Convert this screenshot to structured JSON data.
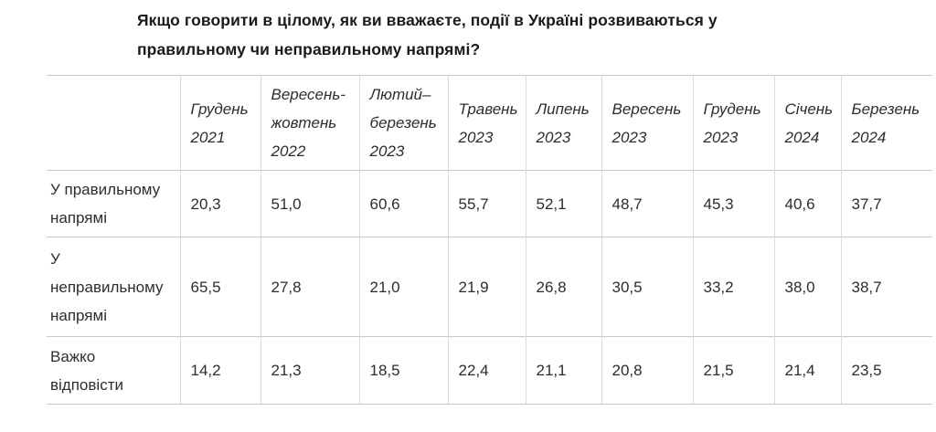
{
  "title": "Якщо говорити в цілому, як ви вважаєте, події в Україні розвиваються у правильному чи неправильному напрямі?",
  "colors": {
    "background": "#ffffff",
    "title_text": "#1b1b1b",
    "body_text": "#2d2d2d",
    "border_horizontal": "#c8c8c8",
    "border_vertical": "#dadada"
  },
  "table": {
    "corner_label": "",
    "columns": [
      "Грудень 2021",
      "Вересень-жовтень 2022",
      "Лютий–березень 2023",
      "Травень 2023",
      "Липень 2023",
      "Вересень 2023",
      "Грудень 2023",
      "Січень 2024",
      "Березень 2024"
    ],
    "rows": [
      {
        "label": "У правильному напрямі",
        "values": [
          "20,3",
          "51,0",
          "60,6",
          "55,7",
          "52,1",
          "48,7",
          "45,3",
          "40,6",
          "37,7"
        ]
      },
      {
        "label": "У неправильному напрямі",
        "values": [
          "65,5",
          "27,8",
          "21,0",
          "21,9",
          "26,8",
          "30,5",
          "33,2",
          "38,0",
          "38,7"
        ]
      },
      {
        "label": "Важко відповісти",
        "values": [
          "14,2",
          "21,3",
          "18,5",
          "22,4",
          "21,1",
          "20,8",
          "21,5",
          "21,4",
          "23,5"
        ]
      }
    ]
  },
  "chart_data": {
    "type": "table",
    "title": "Якщо говорити в цілому, як ви вважаєте, події в Україні розвиваються у правильному чи неправильному напрямі?",
    "categories": [
      "Грудень 2021",
      "Вересень-жовтень 2022",
      "Лютий–березень 2023",
      "Травень 2023",
      "Липень 2023",
      "Вересень 2023",
      "Грудень 2023",
      "Січень 2024",
      "Березень 2024"
    ],
    "series": [
      {
        "name": "У правильному напрямі",
        "values": [
          20.3,
          51.0,
          60.6,
          55.7,
          52.1,
          48.7,
          45.3,
          40.6,
          37.7
        ]
      },
      {
        "name": "У неправильному напрямі",
        "values": [
          65.5,
          27.8,
          21.0,
          21.9,
          26.8,
          30.5,
          33.2,
          38.0,
          38.7
        ]
      },
      {
        "name": "Важко відповісти",
        "values": [
          14.2,
          21.3,
          18.5,
          22.4,
          21.1,
          20.8,
          21.5,
          21.4,
          23.5
        ]
      }
    ],
    "value_unit": "percent",
    "notes": "Last column (Березень 2024) is partially clipped at the right edge of the visible table area"
  }
}
